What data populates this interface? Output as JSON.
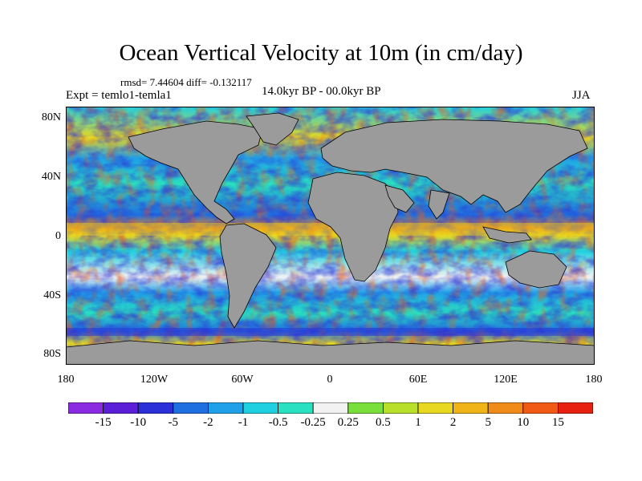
{
  "title": "Ocean Vertical Velocity at 10m (in cm/day)",
  "stats": "rmsd= 7.44604 diff= -0.132117",
  "experiment": "Expt = temlo1-temla1",
  "period": "14.0kyr BP - 00.0kyr BP",
  "season": "JJA",
  "lat_labels": [
    "80N",
    "40N",
    "0",
    "40S",
    "80S"
  ],
  "lon_labels": [
    "180",
    "120W",
    "60W",
    "0",
    "60E",
    "120E",
    "180"
  ],
  "colorbar": {
    "labels": [
      "-15",
      "-10",
      "-5",
      "-2",
      "-1",
      "-0.5",
      "-0.25",
      "0.25",
      "0.5",
      "1",
      "2",
      "5",
      "10",
      "15"
    ],
    "colors": [
      "#8a2be2",
      "#5a1fd6",
      "#2a2fd8",
      "#1f6fe0",
      "#1fa0e8",
      "#1ed0e0",
      "#29e0c0",
      "#f2f2f2",
      "#7adf3a",
      "#b8e02a",
      "#e8d820",
      "#f0b418",
      "#f08a18",
      "#f05a14",
      "#e82010"
    ]
  },
  "land_color": "#9b9b9b"
}
